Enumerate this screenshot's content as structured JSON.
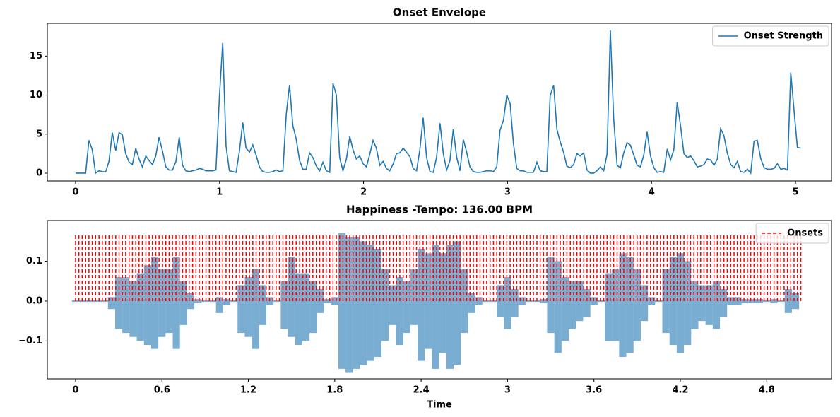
{
  "chart_data": [
    {
      "type": "line",
      "title": "Onset Envelope",
      "x": [
        0,
        0.023,
        0.046,
        0.07,
        0.093,
        0.116,
        0.139,
        0.163,
        0.186,
        0.209,
        0.232,
        0.255,
        0.279,
        0.302,
        0.325,
        0.348,
        0.372,
        0.395,
        0.418,
        0.441,
        0.464,
        0.488,
        0.511,
        0.534,
        0.557,
        0.58,
        0.604,
        0.627,
        0.65,
        0.673,
        0.697,
        0.72,
        0.743,
        0.766,
        0.789,
        0.813,
        0.836,
        0.859,
        0.882,
        0.906,
        0.929,
        0.952,
        0.975,
        0.999,
        1.022,
        1.045,
        1.068,
        1.091,
        1.115,
        1.138,
        1.161,
        1.184,
        1.208,
        1.231,
        1.254,
        1.277,
        1.3,
        1.324,
        1.347,
        1.37,
        1.393,
        1.416,
        1.44,
        1.463,
        1.486,
        1.509,
        1.532,
        1.556,
        1.579,
        1.602,
        1.625,
        1.648,
        1.672,
        1.695,
        1.718,
        1.741,
        1.765,
        1.788,
        1.811,
        1.834,
        1.857,
        1.881,
        1.904,
        1.927,
        1.95,
        1.973,
        1.997,
        2.02,
        2.043,
        2.066,
        2.089,
        2.113,
        2.136,
        2.159,
        2.182,
        2.206,
        2.229,
        2.252,
        2.275,
        2.298,
        2.322,
        2.345,
        2.368,
        2.391,
        2.414,
        2.438,
        2.461,
        2.484,
        2.507,
        2.531,
        2.554,
        2.577,
        2.6,
        2.623,
        2.647,
        2.67,
        2.693,
        2.716,
        2.739,
        2.763,
        2.786,
        2.809,
        2.832,
        2.855,
        2.879,
        2.902,
        2.925,
        2.948,
        2.972,
        2.995,
        3.018,
        3.041,
        3.064,
        3.088,
        3.111,
        3.134,
        3.157,
        3.18,
        3.204,
        3.227,
        3.25,
        3.273,
        3.296,
        3.32,
        3.343,
        3.366,
        3.389,
        3.412,
        3.436,
        3.459,
        3.482,
        3.505,
        3.529,
        3.552,
        3.575,
        3.598,
        3.621,
        3.645,
        3.668,
        3.691,
        3.714,
        3.737,
        3.761,
        3.784,
        3.807,
        3.83,
        3.853,
        3.877,
        3.9,
        3.923,
        3.946,
        3.969,
        3.993,
        4.016,
        4.039,
        4.062,
        4.085,
        4.109,
        4.132,
        4.155,
        4.178,
        4.202,
        4.225,
        4.248,
        4.271,
        4.294,
        4.318,
        4.341,
        4.364,
        4.387,
        4.41,
        4.434,
        4.457,
        4.48,
        4.503,
        4.526,
        4.55,
        4.573,
        4.596,
        4.619,
        4.642,
        4.666,
        4.689,
        4.712,
        4.735,
        4.758,
        4.782,
        4.805,
        4.828,
        4.851,
        4.874,
        4.898,
        4.921,
        4.944,
        4.967,
        4.99,
        5.013,
        5.037
      ],
      "series": [
        {
          "name": "Onset Strength",
          "color": "#1f77b4",
          "linestyle": "solid",
          "values": [
            0,
            0,
            0,
            0,
            4.2,
            3.0,
            0,
            0.3,
            0.2,
            0.15,
            1.5,
            5.2,
            2.9,
            5.2,
            4.9,
            2.5,
            1.4,
            1.1,
            3.2,
            1.8,
            0.8,
            2.2,
            1.6,
            1.1,
            2.2,
            4.6,
            2.8,
            0.8,
            0.4,
            0.4,
            1.5,
            4.6,
            1.0,
            0.3,
            0.2,
            0.3,
            0.4,
            0.6,
            0.5,
            0.3,
            0.3,
            0.3,
            0.4,
            9.8,
            16.7,
            3.5,
            0.3,
            0.2,
            0.1,
            2.8,
            6.5,
            3.2,
            2.7,
            3.6,
            2.3,
            0.8,
            0.2,
            0.1,
            0.1,
            0.2,
            0.4,
            0.2,
            0.3,
            7.5,
            11.3,
            6.1,
            4.4,
            1.6,
            0.5,
            0.5,
            2.6,
            2.0,
            0.9,
            0.3,
            1.4,
            0.3,
            0.1,
            11.5,
            10.0,
            2.0,
            0.3,
            1.8,
            4.7,
            3.0,
            1.8,
            2.2,
            1.2,
            0.8,
            2.4,
            4.2,
            3.2,
            1.0,
            1.5,
            0.6,
            0.3,
            1.2,
            2.5,
            2.6,
            3.2,
            2.7,
            2.1,
            0.6,
            0.3,
            3.0,
            7.1,
            2.0,
            0.2,
            0.1,
            2.0,
            6.4,
            2.5,
            0.4,
            1.6,
            5.6,
            2.0,
            0.3,
            4.3,
            2.7,
            0.8,
            0.2,
            0.1,
            0.1,
            0.2,
            0.3,
            0.3,
            0.2,
            0.8,
            5.5,
            6.8,
            10.0,
            8.9,
            3.8,
            0.6,
            0.3,
            0.3,
            0.1,
            0.1,
            0.1,
            1.4,
            0.3,
            0.2,
            0.2,
            9.9,
            11.3,
            5.6,
            4.0,
            2.7,
            0.9,
            0.7,
            1.1,
            2.5,
            2.2,
            2.6,
            0.4,
            0,
            0,
            0.3,
            0.8,
            0.3,
            2.4,
            18.3,
            7.0,
            1.0,
            0.7,
            2.6,
            3.9,
            3.6,
            2.3,
            1.0,
            0.8,
            2.3,
            5.3,
            2.2,
            0.7,
            0.1,
            0.2,
            0.1,
            3.1,
            1.7,
            3.0,
            9.1,
            6.0,
            2.5,
            2.0,
            2.2,
            1.6,
            0.8,
            0.9,
            1.1,
            1.8,
            1.7,
            1.0,
            1.8,
            5.7,
            4.8,
            2.6,
            1.1,
            0.7,
            1.5,
            0.2,
            0.1,
            0.5,
            0,
            4.1,
            4.2,
            1.9,
            0.7,
            0.5,
            0.5,
            0.6,
            1.2,
            0.5,
            0.6,
            0.4,
            12.9,
            8.0,
            3.3,
            3.2
          ]
        }
      ],
      "xlim": [
        -0.196,
        5.25
      ],
      "ylim": [
        -1.0,
        19.2
      ],
      "xticks": [
        0,
        1,
        2,
        3,
        4,
        5
      ],
      "yticks": [
        0,
        5,
        10,
        15
      ],
      "legend": "upper right"
    },
    {
      "type": "waveform",
      "title": "Happiness -Tempo: 136.00 BPM",
      "x_label": "Time",
      "waveform": {
        "color": "#1f77b4",
        "opacity": 0.6,
        "x": [
          0,
          0.05,
          0.1,
          0.15,
          0.2,
          0.25,
          0.3,
          0.35,
          0.4,
          0.45,
          0.5,
          0.55,
          0.6,
          0.65,
          0.7,
          0.75,
          0.8,
          0.85,
          0.9,
          0.95,
          1.0,
          1.05,
          1.1,
          1.15,
          1.2,
          1.25,
          1.3,
          1.35,
          1.4,
          1.45,
          1.5,
          1.55,
          1.6,
          1.65,
          1.7,
          1.75,
          1.8,
          1.85,
          1.9,
          1.95,
          2.0,
          2.05,
          2.1,
          2.15,
          2.2,
          2.25,
          2.3,
          2.35,
          2.4,
          2.45,
          2.5,
          2.55,
          2.6,
          2.65,
          2.7,
          2.75,
          2.8,
          2.85,
          2.9,
          2.95,
          3.0,
          3.05,
          3.1,
          3.15,
          3.2,
          3.25,
          3.3,
          3.35,
          3.4,
          3.45,
          3.5,
          3.55,
          3.6,
          3.65,
          3.7,
          3.75,
          3.8,
          3.85,
          3.9,
          3.95,
          4.0,
          4.05,
          4.1,
          4.15,
          4.2,
          4.25,
          4.3,
          4.35,
          4.4,
          4.45,
          4.5,
          4.55,
          4.6,
          4.65,
          4.7,
          4.75,
          4.8,
          4.85,
          4.9,
          4.95,
          5.0
        ],
        "upper": [
          0.002,
          0.002,
          0.002,
          0.002,
          0.002,
          0.01,
          0.06,
          0.06,
          0.05,
          0.07,
          0.09,
          0.11,
          0.08,
          0.08,
          0.11,
          0.05,
          0.02,
          0.005,
          0.002,
          0.002,
          0.01,
          0.005,
          0.002,
          0.04,
          0.06,
          0.08,
          0.04,
          0.01,
          0.002,
          0.05,
          0.11,
          0.07,
          0.07,
          0.05,
          0.03,
          0.005,
          0.01,
          0.17,
          0.16,
          0.16,
          0.15,
          0.14,
          0.13,
          0.08,
          0.04,
          0.06,
          0.05,
          0.08,
          0.13,
          0.12,
          0.14,
          0.12,
          0.14,
          0.15,
          0.08,
          0.02,
          0.01,
          0.002,
          0.002,
          0.04,
          0.06,
          0.03,
          0.01,
          0.002,
          0.002,
          0.005,
          0.11,
          0.1,
          0.06,
          0.05,
          0.05,
          0.03,
          0.01,
          0.002,
          0.07,
          0.08,
          0.12,
          0.11,
          0.08,
          0.04,
          0.01,
          0.002,
          0.08,
          0.11,
          0.12,
          0.1,
          0.05,
          0.04,
          0.04,
          0.05,
          0.03,
          0.01,
          0.01,
          0.005,
          0.005,
          0.005,
          0.002,
          0.005,
          0.002,
          0.03,
          0.02
        ],
        "lower": [
          -0.002,
          -0.002,
          -0.002,
          -0.002,
          -0.002,
          -0.02,
          -0.07,
          -0.08,
          -0.09,
          -0.1,
          -0.11,
          -0.12,
          -0.09,
          -0.08,
          -0.12,
          -0.06,
          -0.02,
          -0.005,
          -0.002,
          -0.002,
          -0.03,
          -0.01,
          -0.002,
          -0.08,
          -0.09,
          -0.12,
          -0.06,
          -0.01,
          -0.002,
          -0.07,
          -0.09,
          -0.11,
          -0.1,
          -0.08,
          -0.03,
          -0.005,
          -0.01,
          -0.17,
          -0.18,
          -0.17,
          -0.16,
          -0.15,
          -0.14,
          -0.1,
          -0.06,
          -0.11,
          -0.08,
          -0.06,
          -0.15,
          -0.12,
          -0.17,
          -0.13,
          -0.17,
          -0.16,
          -0.08,
          -0.03,
          -0.01,
          -0.002,
          -0.002,
          -0.04,
          -0.07,
          -0.04,
          -0.01,
          -0.002,
          -0.002,
          -0.005,
          -0.08,
          -0.13,
          -0.1,
          -0.07,
          -0.05,
          -0.04,
          -0.01,
          -0.002,
          -0.1,
          -0.1,
          -0.14,
          -0.13,
          -0.1,
          -0.05,
          -0.01,
          -0.002,
          -0.08,
          -0.11,
          -0.13,
          -0.11,
          -0.07,
          -0.05,
          -0.06,
          -0.07,
          -0.04,
          -0.01,
          -0.01,
          -0.005,
          -0.005,
          -0.005,
          -0.002,
          -0.005,
          -0.002,
          -0.03,
          -0.02
        ]
      },
      "onsets": {
        "name": "Onsets",
        "color": "#ff0000",
        "linestyle": "dashed",
        "ymin": 0,
        "ymax": 0.166,
        "x": [
          0,
          0.023,
          0.046,
          0.07,
          0.093,
          0.116,
          0.139,
          0.163,
          0.186,
          0.209,
          0.232,
          0.255,
          0.279,
          0.302,
          0.325,
          0.348,
          0.372,
          0.395,
          0.418,
          0.441,
          0.464,
          0.488,
          0.511,
          0.534,
          0.557,
          0.58,
          0.604,
          0.627,
          0.65,
          0.673,
          0.697,
          0.72,
          0.743,
          0.766,
          0.789,
          0.813,
          0.836,
          0.859,
          0.882,
          0.906,
          0.929,
          0.952,
          0.975,
          0.999,
          1.022,
          1.045,
          1.068,
          1.091,
          1.115,
          1.138,
          1.161,
          1.184,
          1.208,
          1.231,
          1.254,
          1.277,
          1.3,
          1.324,
          1.347,
          1.37,
          1.393,
          1.416,
          1.44,
          1.463,
          1.486,
          1.509,
          1.532,
          1.556,
          1.579,
          1.602,
          1.625,
          1.648,
          1.672,
          1.695,
          1.718,
          1.741,
          1.765,
          1.788,
          1.811,
          1.834,
          1.857,
          1.881,
          1.904,
          1.927,
          1.95,
          1.973,
          1.997,
          2.02,
          2.043,
          2.066,
          2.089,
          2.113,
          2.136,
          2.159,
          2.182,
          2.206,
          2.229,
          2.252,
          2.275,
          2.298,
          2.322,
          2.345,
          2.368,
          2.391,
          2.414,
          2.438,
          2.461,
          2.484,
          2.507,
          2.531,
          2.554,
          2.577,
          2.6,
          2.623,
          2.647,
          2.67,
          2.693,
          2.716,
          2.739,
          2.763,
          2.786,
          2.809,
          2.832,
          2.855,
          2.879,
          2.902,
          2.925,
          2.948,
          2.972,
          2.995,
          3.018,
          3.041,
          3.064,
          3.088,
          3.111,
          3.134,
          3.157,
          3.18,
          3.204,
          3.227,
          3.25,
          3.273,
          3.296,
          3.32,
          3.343,
          3.366,
          3.389,
          3.412,
          3.436,
          3.459,
          3.482,
          3.505,
          3.529,
          3.552,
          3.575,
          3.598,
          3.621,
          3.645,
          3.668,
          3.691,
          3.714,
          3.737,
          3.761,
          3.784,
          3.807,
          3.83,
          3.853,
          3.877,
          3.9,
          3.923,
          3.946,
          3.969,
          3.993,
          4.016,
          4.039,
          4.062,
          4.085,
          4.109,
          4.132,
          4.155,
          4.178,
          4.202,
          4.225,
          4.248,
          4.271,
          4.294,
          4.318,
          4.341,
          4.364,
          4.387,
          4.41,
          4.434,
          4.457,
          4.48,
          4.503,
          4.526,
          4.55,
          4.573,
          4.596,
          4.619,
          4.642,
          4.666,
          4.689,
          4.712,
          4.735,
          4.758,
          4.782,
          4.805,
          4.828,
          4.851,
          4.874,
          4.898,
          4.921,
          4.944,
          4.967,
          4.99,
          5.013,
          5.037
        ]
      },
      "xlim": [
        -0.196,
        5.25
      ],
      "ylim": [
        -0.195,
        0.202
      ],
      "xticks": [
        0,
        0.6,
        1.2,
        1.8,
        2.4,
        3,
        3.6,
        4.2,
        4.8
      ],
      "yticks": [
        {
          "value": -0.1,
          "label": "−0.1"
        },
        {
          "value": 0,
          "label": "0.0"
        },
        0.1
      ],
      "legend": "upper right"
    }
  ]
}
